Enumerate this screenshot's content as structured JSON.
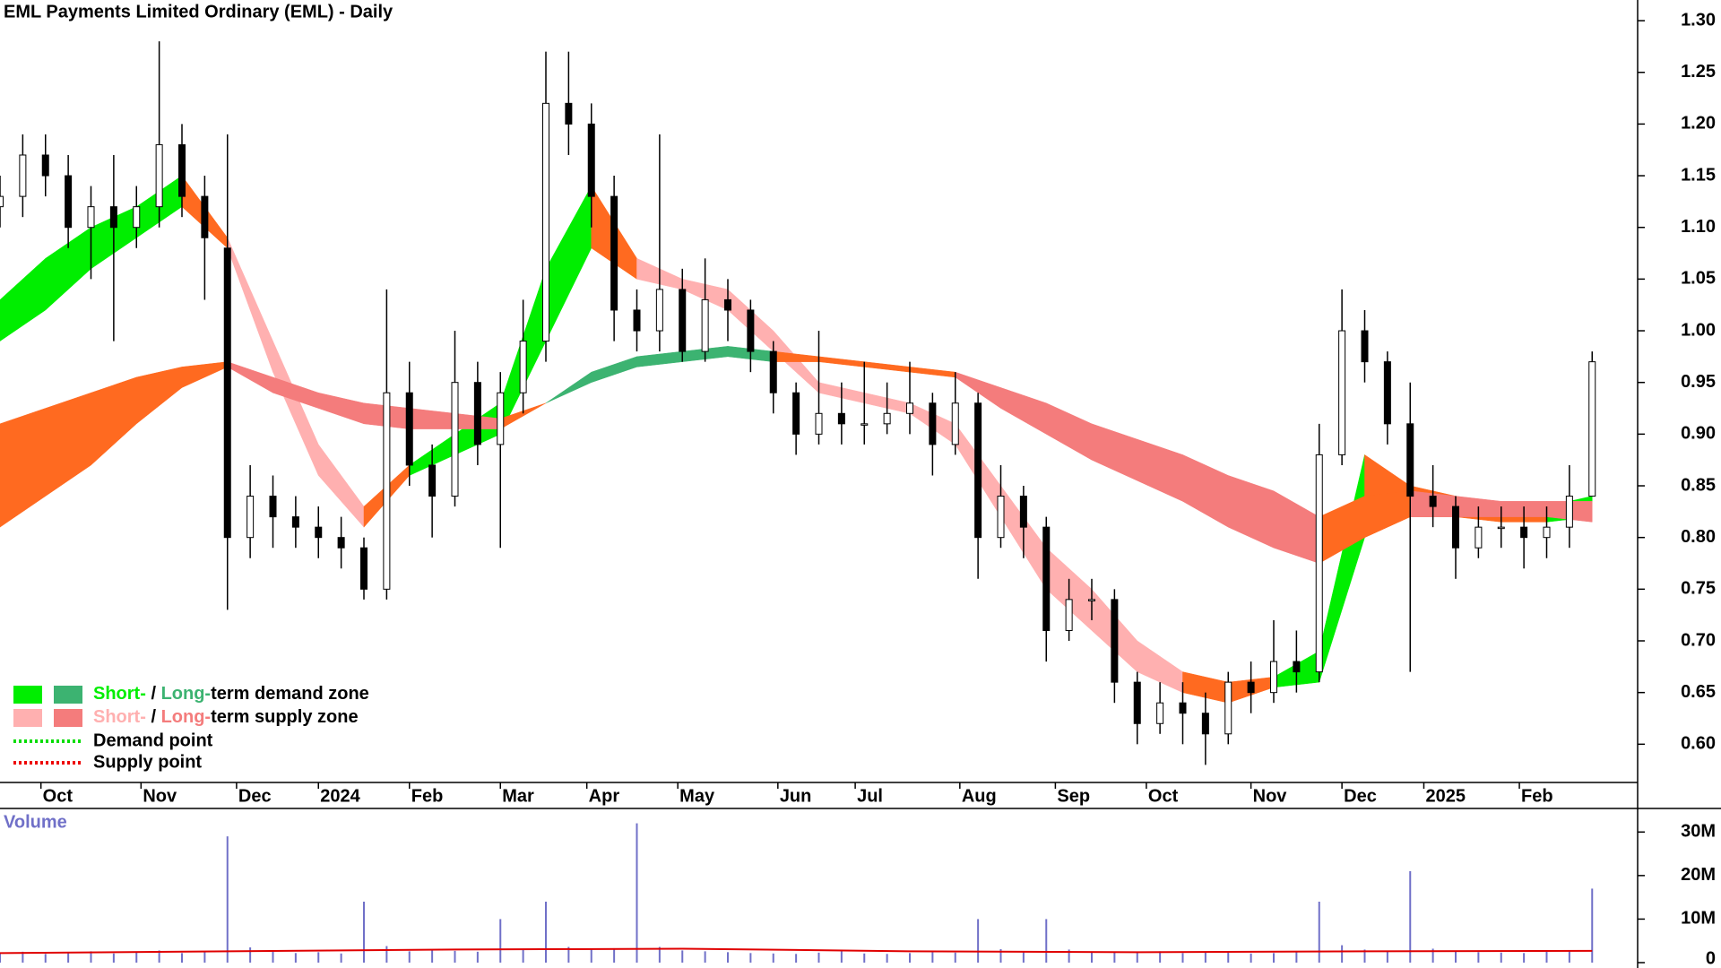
{
  "chart_data": [
    {
      "type": "candlestick",
      "title": "EML Payments Limited Ordinary (EML) - Daily",
      "x": [
        0,
        5,
        10,
        15,
        20,
        25,
        30,
        35,
        40,
        45,
        50,
        55,
        60,
        65,
        70,
        75,
        80,
        85,
        90,
        95,
        100,
        105,
        110,
        115,
        120,
        125,
        130,
        135,
        140,
        145,
        150,
        155,
        160,
        165,
        170,
        175,
        180,
        185,
        190,
        195,
        200,
        205,
        210,
        215,
        220,
        225,
        230,
        235,
        240,
        245,
        250,
        255,
        260,
        265,
        270,
        275,
        280,
        285,
        290,
        295,
        300,
        305,
        310,
        315,
        320,
        325,
        330,
        335,
        340,
        345,
        350
      ],
      "open": [
        1.12,
        1.13,
        1.17,
        1.15,
        1.1,
        1.12,
        1.1,
        1.12,
        1.18,
        1.13,
        1.08,
        0.8,
        0.84,
        0.82,
        0.81,
        0.8,
        0.79,
        0.75,
        0.94,
        0.87,
        0.84,
        0.95,
        0.89,
        0.94,
        0.99,
        1.22,
        1.2,
        1.13,
        1.02,
        1.0,
        1.04,
        0.98,
        1.03,
        1.02,
        0.98,
        0.94,
        0.9,
        0.92,
        0.91,
        0.91,
        0.92,
        0.93,
        0.89,
        0.93,
        0.8,
        0.84,
        0.81,
        0.71,
        0.74,
        0.74,
        0.66,
        0.62,
        0.64,
        0.63,
        0.61,
        0.66,
        0.65,
        0.68,
        0.67,
        0.88,
        1.0,
        0.97,
        0.91,
        0.84,
        0.83,
        0.79,
        0.81,
        0.81,
        0.8,
        0.81,
        0.84
      ],
      "high": [
        1.15,
        1.19,
        1.19,
        1.17,
        1.14,
        1.17,
        1.14,
        1.28,
        1.2,
        1.15,
        1.19,
        0.87,
        0.86,
        0.84,
        0.83,
        0.82,
        0.8,
        1.04,
        0.97,
        0.89,
        1.0,
        0.97,
        0.96,
        1.03,
        1.27,
        1.27,
        1.22,
        1.15,
        1.04,
        1.19,
        1.06,
        1.07,
        1.05,
        1.03,
        0.99,
        0.95,
        1.0,
        0.95,
        0.97,
        0.95,
        0.97,
        0.94,
        0.96,
        0.94,
        0.87,
        0.85,
        0.82,
        0.76,
        0.76,
        0.75,
        0.67,
        0.66,
        0.66,
        0.65,
        0.67,
        0.68,
        0.72,
        0.71,
        0.91,
        1.04,
        1.02,
        0.98,
        0.95,
        0.87,
        0.84,
        0.83,
        0.83,
        0.83,
        0.83,
        0.87,
        0.98
      ],
      "low": [
        1.1,
        1.11,
        1.13,
        1.08,
        1.05,
        0.99,
        1.08,
        1.1,
        1.11,
        1.03,
        0.73,
        0.78,
        0.79,
        0.79,
        0.78,
        0.77,
        0.74,
        0.74,
        0.85,
        0.8,
        0.83,
        0.87,
        0.79,
        0.92,
        0.97,
        1.17,
        1.1,
        0.99,
        0.98,
        0.98,
        0.97,
        0.97,
        0.99,
        0.96,
        0.92,
        0.88,
        0.89,
        0.89,
        0.89,
        0.9,
        0.9,
        0.86,
        0.88,
        0.76,
        0.79,
        0.78,
        0.68,
        0.7,
        0.72,
        0.64,
        0.6,
        0.61,
        0.6,
        0.58,
        0.6,
        0.63,
        0.64,
        0.65,
        0.66,
        0.87,
        0.95,
        0.89,
        0.67,
        0.81,
        0.76,
        0.78,
        0.79,
        0.77,
        0.78,
        0.79,
        0.84
      ],
      "close": [
        1.13,
        1.17,
        1.15,
        1.1,
        1.12,
        1.1,
        1.12,
        1.18,
        1.13,
        1.09,
        0.8,
        0.84,
        0.82,
        0.81,
        0.8,
        0.79,
        0.75,
        0.94,
        0.87,
        0.84,
        0.95,
        0.89,
        0.94,
        0.99,
        1.22,
        1.2,
        1.13,
        1.02,
        1.0,
        1.04,
        0.98,
        1.03,
        1.02,
        0.98,
        0.94,
        0.9,
        0.92,
        0.91,
        0.91,
        0.92,
        0.93,
        0.89,
        0.93,
        0.8,
        0.84,
        0.81,
        0.71,
        0.74,
        0.74,
        0.66,
        0.62,
        0.64,
        0.63,
        0.61,
        0.66,
        0.65,
        0.68,
        0.67,
        0.88,
        1.0,
        0.97,
        0.91,
        0.84,
        0.83,
        0.79,
        0.81,
        0.81,
        0.8,
        0.81,
        0.84,
        0.97
      ],
      "up_color": "#ffffff",
      "down_color": "#000000",
      "zones": [
        {
          "x": [
            0,
            10,
            20,
            30,
            40,
            50,
            60,
            70,
            80,
            90,
            100,
            110,
            120,
            130,
            140,
            150,
            160,
            170,
            180,
            190,
            200,
            210,
            220,
            230,
            240,
            250,
            260,
            270,
            280,
            290,
            300,
            310,
            320,
            330,
            340,
            350
          ],
          "upper": [
            1.03,
            1.07,
            1.1,
            1.12,
            1.15,
            1.09,
            0.99,
            0.89,
            0.83,
            0.87,
            0.9,
            0.93,
            1.06,
            1.14,
            1.07,
            1.05,
            1.04,
            1.0,
            0.95,
            0.94,
            0.93,
            0.91,
            0.85,
            0.79,
            0.75,
            0.7,
            0.67,
            0.66,
            0.665,
            0.69,
            0.88,
            0.85,
            0.84,
            0.83,
            0.83,
            0.84
          ],
          "lower": [
            0.99,
            1.02,
            1.06,
            1.09,
            1.12,
            1.08,
            0.96,
            0.86,
            0.81,
            0.86,
            0.88,
            0.9,
            0.99,
            1.08,
            1.05,
            1.04,
            1.02,
            0.98,
            0.94,
            0.93,
            0.92,
            0.89,
            0.82,
            0.75,
            0.71,
            0.67,
            0.65,
            0.64,
            0.655,
            0.66,
            0.8,
            0.82,
            0.82,
            0.815,
            0.815,
            0.82
          ],
          "colors": [
            "#00ee00",
            "#00ee00",
            "#00ee00",
            "#00ee00",
            "#ff6a20",
            "#ffb0b0",
            "#ffb0b0",
            "#ffb0b0",
            "#ff6a20",
            "#00ee00",
            "#00ee00",
            "#00ee00",
            "#00ee00",
            "#ff6a20",
            "#ffb0b0",
            "#ffb0b0",
            "#ffb0b0",
            "#ffb0b0",
            "#ffb0b0",
            "#ffb0b0",
            "#ffb0b0",
            "#ffb0b0",
            "#ffb0b0",
            "#ffb0b0",
            "#ffb0b0",
            "#ffb0b0",
            "#ff6a20",
            "#ff6a20",
            "#00ee00",
            "#00ee00",
            "#ff6a20",
            "#ff6a20",
            "#ff6a20",
            "#ff6a20",
            "#00ee00"
          ]
        },
        {
          "x": [
            0,
            10,
            20,
            30,
            40,
            50,
            60,
            70,
            80,
            90,
            100,
            110,
            120,
            130,
            140,
            150,
            160,
            170,
            180,
            190,
            200,
            210,
            220,
            230,
            240,
            250,
            260,
            270,
            280,
            290,
            300,
            310,
            320,
            330,
            340,
            350
          ],
          "upper": [
            0.91,
            0.925,
            0.94,
            0.955,
            0.965,
            0.97,
            0.955,
            0.94,
            0.93,
            0.925,
            0.92,
            0.915,
            0.93,
            0.96,
            0.975,
            0.98,
            0.985,
            0.98,
            0.975,
            0.97,
            0.965,
            0.96,
            0.945,
            0.93,
            0.91,
            0.895,
            0.88,
            0.86,
            0.845,
            0.82,
            0.84,
            0.845,
            0.84,
            0.835,
            0.835,
            0.835
          ],
          "lower": [
            0.81,
            0.84,
            0.87,
            0.91,
            0.945,
            0.965,
            0.94,
            0.925,
            0.91,
            0.905,
            0.905,
            0.905,
            0.93,
            0.95,
            0.965,
            0.97,
            0.975,
            0.97,
            0.97,
            0.965,
            0.96,
            0.955,
            0.925,
            0.9,
            0.875,
            0.855,
            0.835,
            0.81,
            0.79,
            0.775,
            0.8,
            0.82,
            0.82,
            0.82,
            0.82,
            0.815
          ],
          "colors": [
            "#ff6a20",
            "#ff6a20",
            "#ff6a20",
            "#ff6a20",
            "#ff6a20",
            "#f47c7c",
            "#f47c7c",
            "#f47c7c",
            "#f47c7c",
            "#f47c7c",
            "#f47c7c",
            "#ff6a20",
            "#3cb371",
            "#3cb371",
            "#3cb371",
            "#3cb371",
            "#3cb371",
            "#ff6a20",
            "#ff6a20",
            "#ff6a20",
            "#ff6a20",
            "#f47c7c",
            "#f47c7c",
            "#f47c7c",
            "#f47c7c",
            "#f47c7c",
            "#f47c7c",
            "#f47c7c",
            "#f47c7c",
            "#ff6a20",
            "#ff6a20",
            "#f47c7c",
            "#f47c7c",
            "#f47c7c",
            "#f47c7c"
          ]
        }
      ],
      "xlim": [
        0,
        360
      ],
      "ylim": [
        0.563,
        1.32
      ],
      "yticks": [
        {
          "value": 0.6,
          "label": "0.60"
        },
        {
          "value": 0.65,
          "label": "0.65"
        },
        {
          "value": 0.7,
          "label": "0.70"
        },
        {
          "value": 0.75,
          "label": "0.75"
        },
        {
          "value": 0.8,
          "label": "0.80"
        },
        {
          "value": 0.85,
          "label": "0.85"
        },
        {
          "value": 0.9,
          "label": "0.90"
        },
        {
          "value": 0.95,
          "label": "0.95"
        },
        {
          "value": 1.0,
          "label": "1.00"
        },
        {
          "value": 1.05,
          "label": "1.05"
        },
        {
          "value": 1.1,
          "label": "1.10"
        },
        {
          "value": 1.15,
          "label": "1.15"
        },
        {
          "value": 1.2,
          "label": "1.20"
        },
        {
          "value": 1.25,
          "label": "1.25"
        },
        {
          "value": 1.3,
          "label": "1.30"
        }
      ],
      "xticks": [
        {
          "value": 9,
          "label": "Oct"
        },
        {
          "value": 31,
          "label": "Nov"
        },
        {
          "value": 52,
          "label": "Dec"
        },
        {
          "value": 70,
          "label": "2024"
        },
        {
          "value": 90,
          "label": "Feb"
        },
        {
          "value": 110,
          "label": "Mar"
        },
        {
          "value": 129,
          "label": "Apr"
        },
        {
          "value": 149,
          "label": "May"
        },
        {
          "value": 171,
          "label": "Jun"
        },
        {
          "value": 188,
          "label": "Jul"
        },
        {
          "value": 211,
          "label": "Aug"
        },
        {
          "value": 232,
          "label": "Sep"
        },
        {
          "value": 252,
          "label": "Oct"
        },
        {
          "value": 275,
          "label": "Nov"
        },
        {
          "value": 295,
          "label": "Dec"
        },
        {
          "value": 313,
          "label": "2025"
        },
        {
          "value": 334,
          "label": "Feb"
        }
      ],
      "grid": false,
      "legend_separator": " / ",
      "legend": [
        {
          "short": "Short-",
          "long": "Long-",
          "text": "term demand zone",
          "short_color": "#00ee00",
          "long_color": "#3cb371"
        },
        {
          "short": "Short-",
          "long": "Long-",
          "text": "term supply zone",
          "short_color": "#ffb0b0",
          "long_color": "#f47c7c"
        }
      ],
      "point_legend": [
        {
          "text": "Demand point",
          "color": "#00dd00"
        },
        {
          "text": "Supply point",
          "color": "#ee0000"
        }
      ]
    },
    {
      "type": "bar",
      "title": "Volume",
      "x": [
        0,
        5,
        10,
        15,
        20,
        25,
        30,
        35,
        40,
        45,
        50,
        55,
        60,
        65,
        70,
        75,
        80,
        85,
        90,
        95,
        100,
        105,
        110,
        115,
        120,
        125,
        130,
        135,
        140,
        145,
        150,
        155,
        160,
        165,
        170,
        175,
        180,
        185,
        190,
        195,
        200,
        205,
        210,
        215,
        220,
        225,
        230,
        235,
        240,
        245,
        250,
        255,
        260,
        265,
        270,
        275,
        280,
        285,
        290,
        295,
        300,
        305,
        310,
        315,
        320,
        325,
        330,
        335,
        340,
        345,
        350
      ],
      "values": [
        2200000,
        2500000,
        2000000,
        2300000,
        2600000,
        2100000,
        2400000,
        2800000,
        2200000,
        2500000,
        29000000,
        3500000,
        2600000,
        2200000,
        2400000,
        2100000,
        14000000,
        3800000,
        2600000,
        2900000,
        2700000,
        2500000,
        10000000,
        3200000,
        14000000,
        3600000,
        3000000,
        3300000,
        32000000,
        3600000,
        2800000,
        2600000,
        2400000,
        2200000,
        2100000,
        2000000,
        2300000,
        2600000,
        2100000,
        2000000,
        2200000,
        2400000,
        2300000,
        10000000,
        3100000,
        2600000,
        10000000,
        3000000,
        2400000,
        2300000,
        2500000,
        2600000,
        2200000,
        2400000,
        2300000,
        2100000,
        2200000,
        2500000,
        14000000,
        4000000,
        3000000,
        2700000,
        21000000,
        3200000,
        2600000,
        2400000,
        2300000,
        2200000,
        2500000,
        2600000,
        17000000
      ],
      "color": "#7070c8",
      "ma": {
        "x": [
          0,
          50,
          100,
          150,
          200,
          250,
          300,
          350
        ],
        "values": [
          2200000,
          2600000,
          3000000,
          3200000,
          2600000,
          2400000,
          2600000,
          2700000
        ],
        "color": "#e00000"
      },
      "xlim": [
        0,
        360
      ],
      "ylim": [
        0,
        35000000
      ],
      "yticks": [
        0,
        {
          "value": 10000000,
          "label": "10M"
        },
        {
          "value": 20000000,
          "label": "20M"
        },
        {
          "value": 30000000,
          "label": "30M"
        }
      ]
    }
  ]
}
